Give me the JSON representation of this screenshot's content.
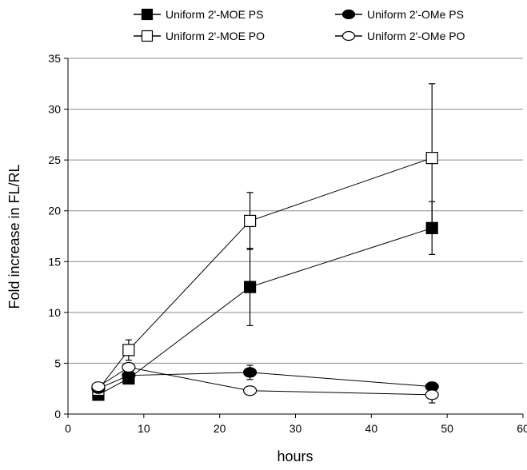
{
  "chart_data": {
    "type": "line",
    "title": "",
    "xlabel": "hours",
    "ylabel": "Fold increase in FL/RL",
    "xlim": [
      0,
      60
    ],
    "ylim": [
      0,
      35
    ],
    "xticks": [
      0,
      10,
      20,
      30,
      40,
      50,
      60
    ],
    "yticks": [
      0,
      5,
      10,
      15,
      20,
      25,
      30,
      35
    ],
    "grid": "horizontal",
    "legend_position": "top",
    "series": [
      {
        "name": "Uniform 2'-MOE PS",
        "marker": "square",
        "fill": "#000000",
        "x": [
          4,
          8,
          24,
          48
        ],
        "y": [
          1.9,
          3.5,
          12.5,
          18.3
        ],
        "err": [
          0.4,
          0.5,
          3.8,
          2.6
        ]
      },
      {
        "name": "Uniform 2'-MOE PO",
        "marker": "square",
        "fill": "#ffffff",
        "x": [
          4,
          8,
          24,
          48
        ],
        "y": [
          2.4,
          6.3,
          19.0,
          25.2
        ],
        "err": [
          0.3,
          1.0,
          2.8,
          7.3
        ]
      },
      {
        "name": "Uniform 2'-OMe PS",
        "marker": "circle",
        "fill": "#000000",
        "x": [
          4,
          8,
          24,
          48
        ],
        "y": [
          2.5,
          3.8,
          4.1,
          2.7
        ],
        "err": [
          0.3,
          0.4,
          0.7,
          0.4
        ]
      },
      {
        "name": "Uniform 2'-OMe PO",
        "marker": "circle",
        "fill": "#ffffff",
        "x": [
          4,
          8,
          24,
          48
        ],
        "y": [
          2.7,
          4.6,
          2.3,
          1.9
        ],
        "err": [
          0.3,
          0.3,
          0.3,
          0.8
        ]
      }
    ]
  }
}
